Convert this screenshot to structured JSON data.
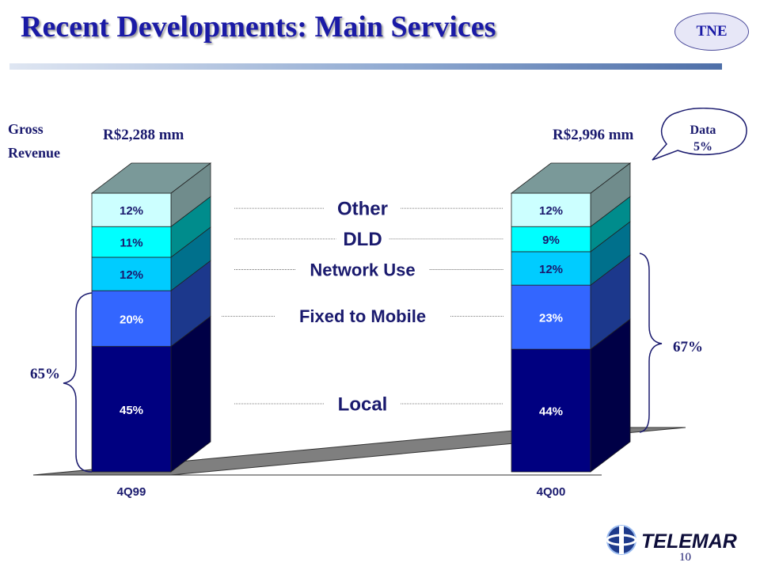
{
  "slide": {
    "title": "Recent Developments: Main Services",
    "badge": "TNE",
    "gross_revenue_label": "Gross Revenue",
    "callout": {
      "line1": "Data",
      "line2": "5%"
    },
    "brace_left_label": "65%",
    "brace_right_label": "67%",
    "logo_text": "TELEMAR",
    "page_number": "10"
  },
  "colors": {
    "title": "#1a1aa6",
    "Local": "#000080",
    "Fixed to Mobile": "#3366ff",
    "Network Use": "#00ccff",
    "DLD": "#00ffff",
    "Other": "#ccffff"
  },
  "chart_data": {
    "type": "bar",
    "stacked": true,
    "three_d": true,
    "categories": [
      "4Q99",
      "4Q00"
    ],
    "totals": [
      "R$2,288 mm",
      "R$2,996 mm"
    ],
    "series": [
      {
        "name": "Local",
        "values": [
          45,
          44
        ],
        "labels": [
          "45%",
          "44%"
        ]
      },
      {
        "name": "Fixed to Mobile",
        "values": [
          20,
          23
        ],
        "labels": [
          "20%",
          "23%"
        ]
      },
      {
        "name": "Network Use",
        "values": [
          12,
          12
        ],
        "labels": [
          "12%",
          "12%"
        ]
      },
      {
        "name": "DLD",
        "values": [
          11,
          9
        ],
        "labels": [
          "11%",
          "9%"
        ]
      },
      {
        "name": "Other",
        "values": [
          12,
          12
        ],
        "labels": [
          "12%",
          "12%"
        ]
      }
    ],
    "unit": "%",
    "legend_placement": "center-inline"
  }
}
